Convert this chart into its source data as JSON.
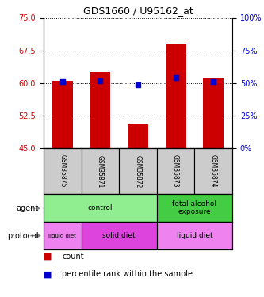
{
  "title": "GDS1660 / U95162_at",
  "samples": [
    "GSM35875",
    "GSM35871",
    "GSM35872",
    "GSM35873",
    "GSM35874"
  ],
  "bar_bottoms": [
    45,
    45,
    45,
    45,
    45
  ],
  "bar_tops": [
    60.5,
    62.5,
    50.5,
    69.0,
    61.0
  ],
  "percentile_y": [
    60.3,
    60.6,
    59.6,
    61.3,
    60.3
  ],
  "ylim_left": [
    45,
    75
  ],
  "ylim_right": [
    0,
    100
  ],
  "yticks_left": [
    45,
    52.5,
    60,
    67.5,
    75
  ],
  "yticks_right": [
    0,
    25,
    50,
    75,
    100
  ],
  "bar_color": "#cc0000",
  "percentile_color": "#0000cc",
  "agent_groups": [
    {
      "label": "control",
      "span": [
        0,
        3
      ],
      "color": "#90ee90"
    },
    {
      "label": "fetal alcohol\nexposure",
      "span": [
        3,
        5
      ],
      "color": "#44cc44"
    }
  ],
  "protocol_groups": [
    {
      "label": "liquid diet",
      "span": [
        0,
        1
      ],
      "color": "#ee82ee"
    },
    {
      "label": "solid diet",
      "span": [
        1,
        3
      ],
      "color": "#dd44dd"
    },
    {
      "label": "liquid diet",
      "span": [
        3,
        5
      ],
      "color": "#ee82ee"
    }
  ],
  "legend_count_color": "#cc0000",
  "legend_pct_color": "#0000cc",
  "background_color": "#ffffff",
  "sample_box_color": "#cccccc"
}
